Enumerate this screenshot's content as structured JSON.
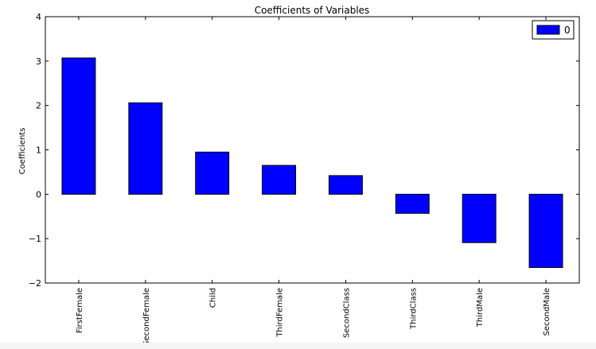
{
  "chart_data": {
    "type": "bar",
    "title": "Coefficients of Variables",
    "xlabel": "",
    "ylabel": "Coefficients",
    "categories": [
      "FirstFemale",
      "SecondFemale",
      "Child",
      "ThirdFemale",
      "SecondClass",
      "ThirdClass",
      "ThirdMale",
      "SecondMale"
    ],
    "series": [
      {
        "name": "0",
        "values": [
          3.07,
          2.06,
          0.95,
          0.65,
          0.42,
          -0.43,
          -1.09,
          -1.65
        ]
      }
    ],
    "ylim": [
      -2,
      4
    ],
    "yticks": [
      -2,
      -1,
      0,
      1,
      2,
      3,
      4
    ],
    "ytick_labels": [
      "−2",
      "−1",
      "0",
      "1",
      "2",
      "3",
      "4"
    ],
    "grid": false,
    "legend_position": "top-right",
    "colors": {
      "bar": "#0000ff",
      "edge": "#000000"
    }
  }
}
